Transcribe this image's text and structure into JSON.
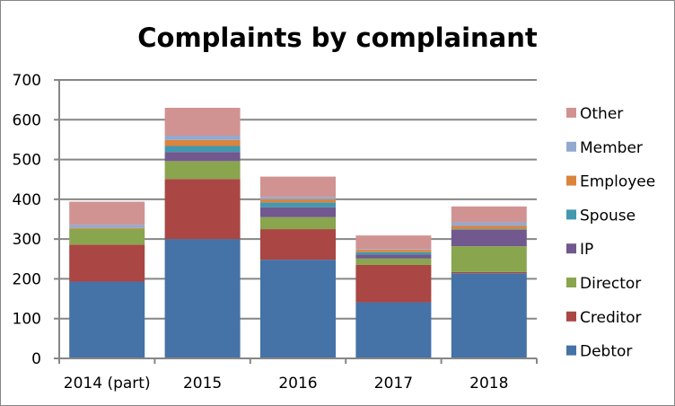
{
  "chart_data": {
    "type": "bar",
    "stacked": true,
    "title": "Complaints by complainant",
    "xlabel": "",
    "ylabel": "",
    "ylim": [
      0,
      700
    ],
    "yticks": [
      "0",
      "100",
      "200",
      "300",
      "400",
      "500",
      "600",
      "700"
    ],
    "ytick_values": [
      0,
      100,
      200,
      300,
      400,
      500,
      600,
      700
    ],
    "grid": true,
    "legend_position": "right",
    "categories": [
      "2014 (part)",
      "2015",
      "2016",
      "2017",
      "2018"
    ],
    "series": [
      {
        "name": "Debtor",
        "color": "#4572A7",
        "values": [
          193,
          300,
          248,
          141,
          214
        ]
      },
      {
        "name": "Creditor",
        "color": "#AA4643",
        "values": [
          93,
          151,
          77,
          94,
          3
        ]
      },
      {
        "name": "Director",
        "color": "#89A54E",
        "values": [
          40,
          45,
          30,
          16,
          65
        ]
      },
      {
        "name": "IP",
        "color": "#71588F",
        "values": [
          0,
          23,
          25,
          10,
          41
        ]
      },
      {
        "name": "Spouse",
        "color": "#4198AF",
        "values": [
          0,
          15,
          12,
          6,
          2
        ]
      },
      {
        "name": "Employee",
        "color": "#DB843D",
        "values": [
          2,
          15,
          8,
          6,
          8
        ]
      },
      {
        "name": "Member",
        "color": "#93A9CF",
        "values": [
          8,
          11,
          6,
          2,
          9
        ]
      },
      {
        "name": "Other",
        "color": "#D19392",
        "values": [
          58,
          70,
          51,
          34,
          40
        ]
      }
    ]
  }
}
